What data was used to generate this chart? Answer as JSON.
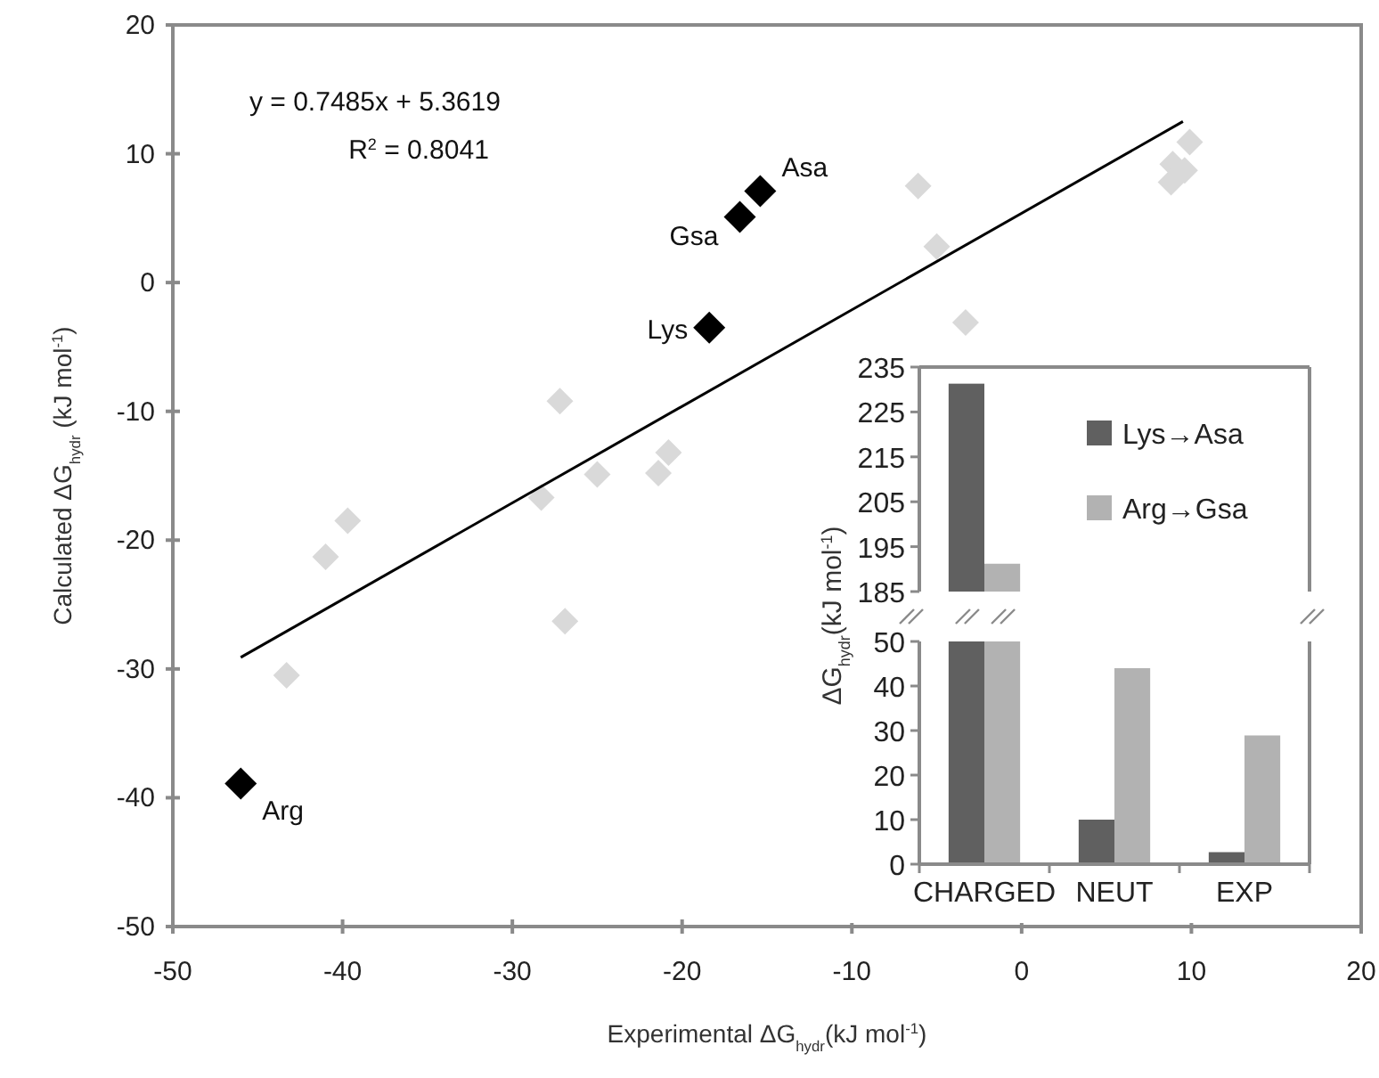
{
  "chart_data": [
    {
      "type": "scatter",
      "xlabel": "Experimental ΔG$_{hydr}$(kJ mol$^{-1}$)",
      "ylabel": "Calculated ΔG$_{hydr}$ (kJ mol$^{-1}$)",
      "xlim": [
        -50,
        20
      ],
      "ylim": [
        -50,
        20
      ],
      "xticks": [
        -50,
        -40,
        -30,
        -20,
        -10,
        0,
        10,
        20
      ],
      "yticks": [
        -50,
        -40,
        -30,
        -20,
        -10,
        0,
        10,
        20
      ],
      "grid": false,
      "legend": false,
      "marker": "diamond",
      "series": [
        {
          "color": "#d9d9d9",
          "x": [
            -43.3,
            -41.0,
            -39.7,
            -27.2,
            -28.3,
            -26.9,
            -25.0,
            -21.4,
            -20.8,
            -3.3,
            -6.1,
            -5.0,
            9.9,
            8.9,
            9.6,
            8.8
          ],
          "values": [
            -30.5,
            -21.3,
            -18.5,
            -9.2,
            -16.7,
            -26.3,
            -14.9,
            -14.8,
            -13.2,
            -3.1,
            7.5,
            2.8,
            10.9,
            9.2,
            8.7,
            7.8
          ]
        },
        {
          "color": "#000000",
          "x": [
            -15.4,
            -16.6,
            -18.4,
            -46.0
          ],
          "values": [
            7.1,
            5.1,
            -3.5,
            -38.9
          ]
        },
        {
          "type": "line",
          "color": "#000000",
          "marker": "none",
          "line_style": "solid",
          "x": [
            -46,
            9.5
          ],
          "values": [
            -29.1,
            12.5
          ]
        }
      ],
      "annotations": [
        "y = 0.7485x + 5.3619",
        "R$^{2}$ = 0.8041",
        {
          "text": "Asa",
          "x": -15.4,
          "y": 7.1
        },
        {
          "text": "Gsa",
          "x": -16.6,
          "y": 5.1
        },
        {
          "text": "Lys",
          "x": -18.4,
          "y": -3.5
        },
        {
          "text": "Arg",
          "x": -46.0,
          "y": -38.9
        }
      ]
    },
    {
      "type": "bar",
      "ylabel": "ΔG$_{hydr}$(kJ mol$^{-1}$)",
      "categories": [
        null,
        null,
        null
      ],
      "ylim": [
        185,
        235
      ],
      "yticks": [
        185,
        195,
        205,
        215,
        225,
        235
      ],
      "tick_labels": "y",
      "legend": "top right",
      "series": [
        {
          "name": "Lys→Asa",
          "color": "#606060",
          "values": [
            231.3,
            null,
            null
          ]
        },
        {
          "name": "Arg→Gsa",
          "color": "#b2b2b2",
          "values": [
            191.2,
            null,
            null
          ]
        }
      ]
    },
    {
      "type": "bar",
      "categories": [
        "CHARGED",
        "NEUT",
        "EXP"
      ],
      "ylim": [
        0,
        50
      ],
      "yticks": [
        0,
        10,
        20,
        30,
        40,
        50
      ],
      "series": [
        {
          "color": "#606060",
          "values": [
            null,
            10,
            2.7
          ]
        },
        {
          "color": "#b2b2b2",
          "values": [
            null,
            44,
            28.9
          ]
        }
      ]
    }
  ]
}
